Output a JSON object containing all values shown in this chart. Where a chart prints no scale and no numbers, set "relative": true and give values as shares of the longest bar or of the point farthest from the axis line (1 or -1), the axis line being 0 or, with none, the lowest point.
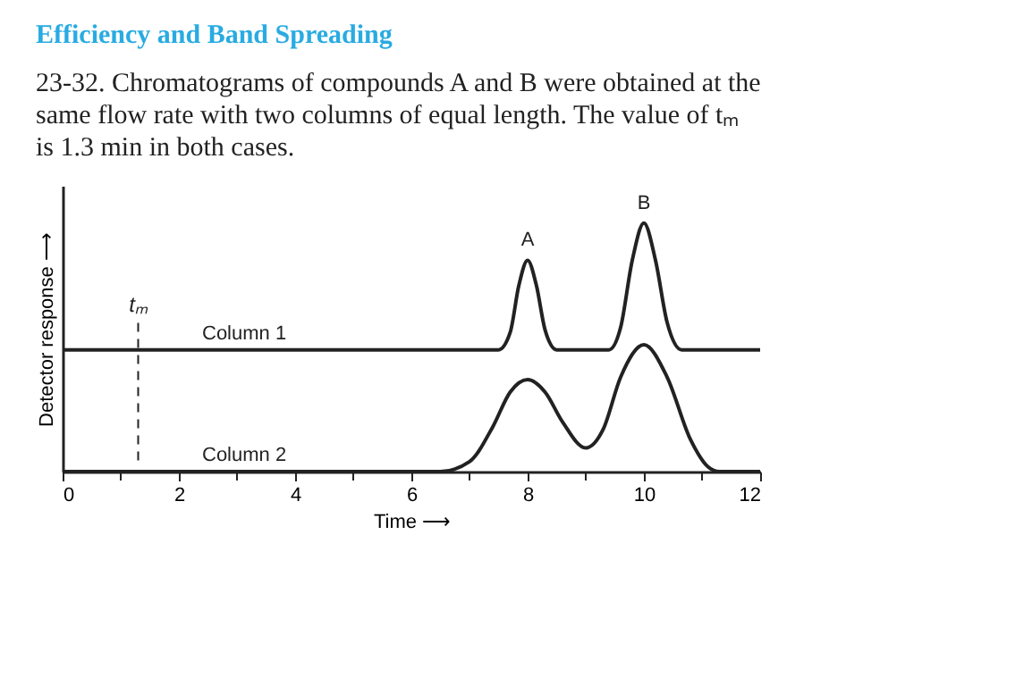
{
  "chart_data": {
    "type": "line",
    "title": "Efficiency and Band Spreading",
    "subtitle": "23-32. Chromatograms of compounds A and B were obtained at the same flow rate with two columns of equal length. The value of tₘ is 1.3 min in both cases.",
    "xlabel": "Time ⟶",
    "ylabel": "Detector response ⟶",
    "relative": true,
    "xlim": [
      0,
      12
    ],
    "xticks": [
      0,
      {
        "value": 1,
        "label": null
      },
      2,
      {
        "value": 3,
        "label": null
      },
      4,
      {
        "value": 5,
        "label": null
      },
      6,
      {
        "value": 7,
        "label": null
      },
      8,
      {
        "value": 9,
        "label": null
      },
      10,
      {
        "value": 11,
        "label": null
      },
      12
    ],
    "series": [
      {
        "name": "Column 1",
        "color": "#222222",
        "x": [
          0,
          7.5,
          7.7,
          7.85,
          8.0,
          8.15,
          8.3,
          8.5,
          9.4,
          9.6,
          9.8,
          10.0,
          10.2,
          10.4,
          10.65,
          12
        ],
        "values": [
          0.49,
          0.49,
          0.56,
          0.75,
          0.85,
          0.75,
          0.57,
          0.49,
          0.49,
          0.58,
          0.85,
          1.0,
          0.85,
          0.6,
          0.49,
          0.49
        ]
      },
      {
        "name": "Column 2",
        "color": "#222222",
        "x": [
          0,
          6.5,
          7.0,
          7.4,
          7.7,
          8.0,
          8.3,
          8.6,
          9.0,
          9.3,
          9.6,
          10.0,
          10.4,
          10.8,
          11.1,
          11.3,
          12
        ],
        "values": [
          0,
          0,
          0.04,
          0.18,
          0.32,
          0.37,
          0.32,
          0.2,
          0.095,
          0.17,
          0.38,
          0.51,
          0.38,
          0.13,
          0.02,
          0,
          0
        ]
      }
    ],
    "annotations": [
      {
        "text": "A",
        "x": 8,
        "y": 0.85
      },
      {
        "text": "B",
        "x": 10,
        "y": 1.0
      }
    ],
    "ref_lines": [
      {
        "axis": "x",
        "value": 1.3,
        "label": "tₘ",
        "line_style": "dashed"
      }
    ],
    "line_style": "solid",
    "marker": "none",
    "grid": false
  }
}
